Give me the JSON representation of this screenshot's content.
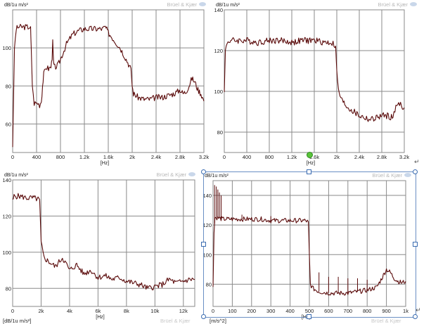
{
  "brand": "Brüel & Kjær",
  "brand_logo_icon": "bk-logo-icon",
  "trace_color": "#5a0a0a",
  "selection_color": "#3a6bb0",
  "para_mark": "↵",
  "bottom_left_label": "[dB/1u m/s²]",
  "bottom_right_label": "[m/s^2]",
  "chart_data": [
    {
      "type": "line",
      "ylabel": "dB/1u m/s²",
      "xlabel": "[Hz]",
      "xlim": [
        0,
        3200
      ],
      "ylim": [
        45,
        120
      ],
      "xticks": [
        0,
        400,
        800,
        1200,
        1600,
        2000,
        2400,
        2800,
        3200
      ],
      "xticklabels": [
        "0",
        "400",
        "800",
        "1.2k",
        "1.6k",
        "2k",
        "2.4k",
        "2.8k",
        "3.2k"
      ],
      "yticks": [
        60,
        80,
        100
      ],
      "yticklabels": [
        "60",
        "80",
        "100"
      ],
      "grid": true,
      "series": [
        {
          "x": [
            0,
            30,
            60,
            100,
            200,
            300,
            310,
            330,
            360,
            420,
            450,
            480,
            500,
            520,
            560,
            600,
            640,
            660,
            670,
            680,
            690,
            720,
            760,
            800,
            900,
            1000,
            1100,
            1200,
            1300,
            1400,
            1500,
            1550,
            1600,
            1700,
            1800,
            1900,
            1980,
            2000,
            2020,
            2100,
            2200,
            2300,
            2400,
            2500,
            2600,
            2700,
            2760,
            2800,
            2850,
            2900,
            2950,
            3000,
            3050,
            3100,
            3150,
            3200
          ],
          "y": [
            48,
            100,
            110,
            111,
            111,
            111,
            100,
            80,
            71,
            71,
            70,
            72,
            80,
            86,
            90,
            89,
            90,
            94,
            104,
            95,
            90,
            90,
            91,
            94,
            102,
            107,
            109,
            110,
            110,
            110,
            110,
            111,
            108,
            104,
            100,
            94,
            89,
            80,
            76,
            74,
            73,
            73,
            74,
            74,
            75,
            76,
            77,
            78,
            76,
            77,
            80,
            84,
            82,
            78,
            76,
            72
          ]
        }
      ]
    },
    {
      "type": "line",
      "ylabel": "dB/1u m/s²",
      "xlabel": "[Hz]",
      "xlim": [
        0,
        3200
      ],
      "ylim": [
        70,
        140
      ],
      "xticks": [
        0,
        400,
        800,
        1200,
        1600,
        2000,
        2400,
        2800,
        3200
      ],
      "xticklabels": [
        "0",
        "400",
        "800",
        "1.2k",
        "1.6k",
        "2k",
        "2.4k",
        "2.8k",
        "3.2k"
      ],
      "yticks": [
        80,
        100,
        120,
        140
      ],
      "yticklabels": [
        "80",
        "100",
        "120",
        "140"
      ],
      "grid": true,
      "series": [
        {
          "x": [
            0,
            20,
            50,
            100,
            200,
            400,
            600,
            800,
            1000,
            1200,
            1400,
            1600,
            1800,
            1900,
            1950,
            1980,
            2000,
            2030,
            2100,
            2200,
            2300,
            2400,
            2500,
            2600,
            2700,
            2800,
            2900,
            3000,
            3050,
            3100,
            3150,
            3200
          ],
          "y": [
            100,
            120,
            124,
            125,
            125,
            125,
            124,
            125,
            125,
            124,
            125,
            125,
            124,
            124,
            123,
            122,
            110,
            100,
            95,
            92,
            90,
            88,
            87,
            86,
            87,
            88,
            88,
            87,
            92,
            95,
            93,
            92
          ]
        }
      ]
    },
    {
      "type": "line",
      "ylabel": "dB/1u m/s²",
      "xlabel": "[Hz]",
      "xlim": [
        0,
        12800
      ],
      "ylim": [
        70,
        140
      ],
      "xticks": [
        0,
        2000,
        4000,
        6000,
        8000,
        10000,
        12000
      ],
      "xticklabels": [
        "0",
        "2k",
        "4k",
        "6k",
        "8k",
        "10k",
        "12k"
      ],
      "yticks": [
        80,
        100,
        120,
        140
      ],
      "yticklabels": [
        "80",
        "100",
        "120",
        "140"
      ],
      "grid": true,
      "series": [
        {
          "x": [
            0,
            100,
            500,
            1000,
            1500,
            1900,
            2000,
            2200,
            2500,
            3000,
            3500,
            3800,
            4000,
            4500,
            5000,
            5500,
            6000,
            6500,
            7000,
            7500,
            8000,
            8500,
            9000,
            9500,
            10000,
            10500,
            11000,
            11500,
            12000,
            12500,
            12800
          ],
          "y": [
            128,
            131,
            131,
            130,
            130,
            129,
            105,
            97,
            95,
            92,
            97,
            93,
            90,
            93,
            88,
            90,
            86,
            87,
            85,
            86,
            84,
            83,
            82,
            80,
            81,
            82,
            85,
            83,
            84,
            85,
            85
          ]
        }
      ]
    },
    {
      "type": "line",
      "ylabel": "dB/1u m/s²",
      "xlabel": "[Hz]",
      "xlim": [
        0,
        1000
      ],
      "ylim": [
        65,
        150
      ],
      "xticks": [
        0,
        100,
        200,
        300,
        400,
        500,
        600,
        700,
        800,
        900,
        1000
      ],
      "xticklabels": [
        "0",
        "100",
        "200",
        "300",
        "400",
        "500",
        "600",
        "700",
        "800",
        "900",
        "1k"
      ],
      "yticks": [
        80,
        100,
        120,
        140
      ],
      "yticklabels": [
        "80",
        "100",
        "120",
        "140"
      ],
      "grid": true,
      "series": [
        {
          "x": [
            0,
            5,
            10,
            20,
            50,
            100,
            150,
            200,
            250,
            300,
            350,
            400,
            450,
            480,
            495,
            500,
            505,
            520,
            550,
            600,
            650,
            700,
            750,
            800,
            850,
            880,
            900,
            920,
            940,
            960,
            980,
            1000
          ],
          "y": [
            78,
            115,
            125,
            125,
            124,
            124,
            124,
            124,
            124,
            123,
            123,
            123,
            123,
            123,
            122,
            100,
            80,
            77,
            75,
            74,
            74,
            74,
            75,
            76,
            78,
            85,
            90,
            88,
            84,
            82,
            81,
            82
          ]
        }
      ],
      "spikes": [
        {
          "x": 8,
          "y": 147
        },
        {
          "x": 17,
          "y": 146
        },
        {
          "x": 25,
          "y": 144
        },
        {
          "x": 33,
          "y": 142
        },
        {
          "x": 42,
          "y": 140
        },
        {
          "x": 150,
          "y": 127
        },
        {
          "x": 300,
          "y": 126
        },
        {
          "x": 550,
          "y": 88
        },
        {
          "x": 600,
          "y": 85
        },
        {
          "x": 650,
          "y": 85
        },
        {
          "x": 700,
          "y": 84
        },
        {
          "x": 750,
          "y": 84
        },
        {
          "x": 800,
          "y": 83
        }
      ]
    }
  ]
}
